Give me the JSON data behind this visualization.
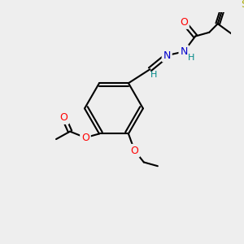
{
  "bg_color": "#eeeeee",
  "bond_color": "#000000",
  "bond_width": 1.5,
  "atom_colors": {
    "O": "#ff0000",
    "N": "#0000cc",
    "S": "#aaaa00",
    "C": "#000000",
    "H": "#008888"
  },
  "font_size": 8,
  "fig_size": [
    3.0,
    3.0
  ],
  "dpi": 100
}
